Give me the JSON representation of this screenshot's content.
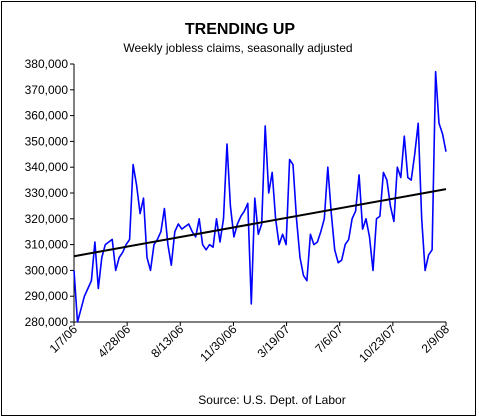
{
  "chart_data": {
    "type": "line",
    "title": "TRENDING UP",
    "subtitle": "Weekly jobless claims, seasonally adjusted",
    "source": "Source: U.S. Dept. of Labor",
    "ylim": [
      280000,
      380000
    ],
    "y_ticks": [
      "280,000",
      "290,000",
      "300,000",
      "310,000",
      "320,000",
      "330,000",
      "340,000",
      "350,000",
      "360,000",
      "370,000",
      "380,000"
    ],
    "x_ticks": [
      "1/7/06",
      "4/28/06",
      "8/13/06",
      "11/30/06",
      "3/19/07",
      "7/6/07",
      "10/23/07",
      "2/9/08"
    ],
    "grid": false,
    "series": [
      {
        "values": [
          300000,
          280000,
          285000,
          290000,
          293000,
          296000,
          311000,
          293000,
          305000,
          310000,
          311000,
          312000,
          300000,
          305000,
          307000,
          310000,
          312000,
          341000,
          333000,
          322000,
          328000,
          305000,
          300000,
          310000,
          312000,
          315000,
          324000,
          310000,
          302000,
          315000,
          318000,
          316000,
          317000,
          318000,
          315000,
          313000,
          320000,
          310000,
          308000,
          310000,
          309000,
          320000,
          311000,
          320000,
          349000,
          325000,
          313000,
          318000,
          321000,
          323000,
          326000,
          287000,
          328000,
          314000,
          318000,
          356000,
          330000,
          338000,
          320000,
          310000,
          314000,
          310000,
          343000,
          341000,
          320000,
          305000,
          298000,
          296000,
          314000,
          310000,
          311000,
          315000,
          320000,
          340000,
          322000,
          308000,
          303000,
          304000,
          310000,
          312000,
          320000,
          323000,
          337000,
          316000,
          320000,
          313000,
          300000,
          320000,
          321000,
          338000,
          335000,
          325000,
          319000,
          340000,
          336000,
          352000,
          336000,
          335000,
          345000,
          357000,
          320000,
          300000,
          306000,
          308000,
          377000,
          357000,
          353000,
          346000
        ]
      },
      {
        "values": [
          305500,
          331500
        ]
      }
    ],
    "colors": {
      "data_line": "#0000ff",
      "trend_line": "#000000"
    }
  }
}
